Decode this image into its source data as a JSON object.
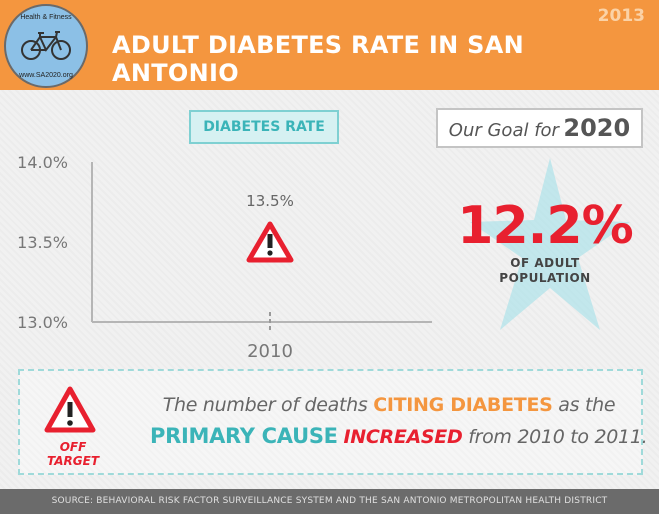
{
  "header": {
    "year": "2013",
    "title": "ADULT DIABETES RATE IN SAN ANTONIO",
    "logo": {
      "top_text": "Health & Fitness",
      "bottom_text": "www.SA2020.org",
      "icon": "bicycle-icon"
    }
  },
  "chart_tag": "DIABETES RATE",
  "chart_data": {
    "type": "scatter",
    "title": "DIABETES RATE",
    "x": [
      "2010"
    ],
    "yticks": [
      "14.0%",
      "13.5%",
      "13.0%"
    ],
    "ylim": [
      13.0,
      14.0
    ],
    "series": [
      {
        "values": [
          13.5
        ],
        "labels": [
          "13.5%"
        ],
        "marker": "warning-triangle"
      }
    ],
    "grid": false
  },
  "goal": {
    "prefix": "Our Goal for",
    "year": "2020",
    "value": "12.2%",
    "line1": "OF ADULT",
    "line2": "POPULATION"
  },
  "note": {
    "badge": "OFF TARGET",
    "part1": "The number of deaths",
    "hl1": "CITING DIABETES",
    "part2": "as the",
    "hl2": "PRIMARY CAUSE",
    "hl3": "INCREASED",
    "part3": "from 2010 to 2011."
  },
  "footer": "SOURCE: BEHAVIORAL RISK FACTOR SURVEILLANCE SYSTEM AND THE SAN ANTONIO METROPOLITAN HEALTH DISTRICT",
  "colors": {
    "header": "#f4963f",
    "teal": "#3bb4b8",
    "red": "#e8202f",
    "star": "#aee3ea",
    "footer": "#6b6b6b"
  }
}
